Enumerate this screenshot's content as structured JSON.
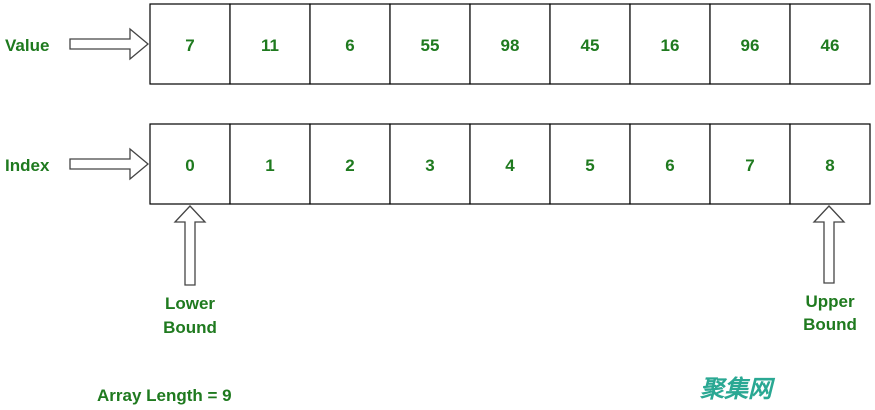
{
  "value_label": "Value",
  "index_label": "Index",
  "values": [
    "7",
    "11",
    "6",
    "55",
    "98",
    "45",
    "16",
    "96",
    "46"
  ],
  "indices": [
    "0",
    "1",
    "2",
    "3",
    "4",
    "5",
    "6",
    "7",
    "8"
  ],
  "lower_bound": {
    "line1": "Lower",
    "line2": "Bound"
  },
  "upper_bound": {
    "line1": "Upper",
    "line2": "Bound"
  },
  "array_length": "Array Length = 9",
  "watermark": "聚集网",
  "colors": {
    "text": "#1f7a1f",
    "watermark": "#2aa893"
  }
}
